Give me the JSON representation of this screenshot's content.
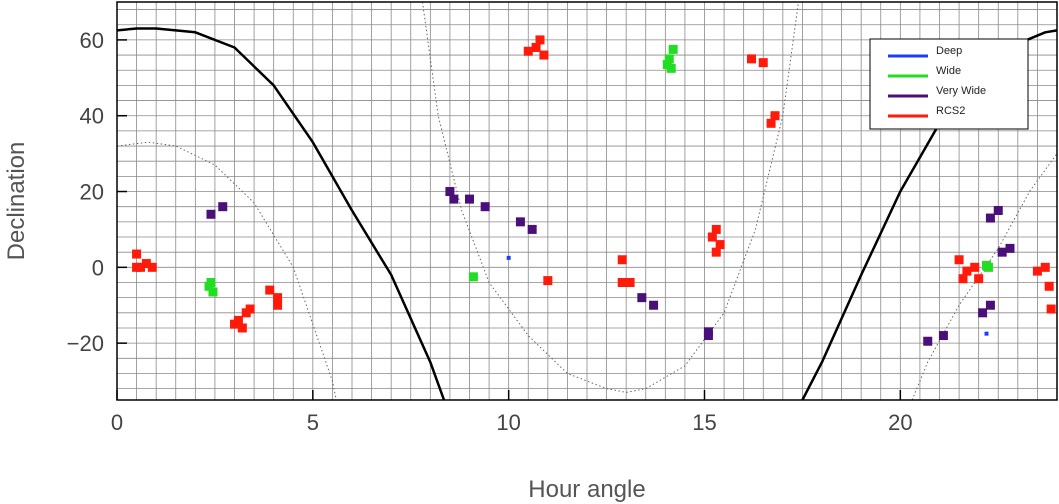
{
  "chart_data": {
    "type": "scatter",
    "xlabel": "Hour angle",
    "ylabel": "Declination",
    "xlim": [
      0,
      24
    ],
    "ylim": [
      -35,
      70
    ],
    "xticks": [
      0,
      5,
      10,
      15,
      20
    ],
    "yticks": [
      -20,
      0,
      20,
      40,
      60
    ],
    "xtick_labels": [
      "0",
      "5",
      "10",
      "15",
      "20"
    ],
    "ytick_labels": [
      "−20",
      "0",
      "20",
      "40",
      "60"
    ],
    "grid": true,
    "grid_minor_x": 0.5,
    "grid_minor_y": 4,
    "legend_position": "top-right",
    "series": [
      {
        "name": "Deep",
        "color": "#1a3cff",
        "points": [
          [
            10.0,
            2.5
          ],
          [
            14.2,
            53
          ],
          [
            22.2,
            -17.5
          ]
        ]
      },
      {
        "name": "Wide",
        "color": "#22dd22",
        "points": [
          [
            2.35,
            -5
          ],
          [
            2.45,
            -6.5
          ],
          [
            2.4,
            -4
          ],
          [
            9.1,
            -2.5
          ],
          [
            14.05,
            53.5
          ],
          [
            14.15,
            52.5
          ],
          [
            14.1,
            55
          ],
          [
            14.2,
            57.5
          ],
          [
            22.2,
            0.5
          ],
          [
            22.25,
            0
          ]
        ]
      },
      {
        "name": "Very Wide",
        "color": "#4b0f7a",
        "points": [
          [
            2.4,
            14
          ],
          [
            2.7,
            16
          ],
          [
            8.5,
            20
          ],
          [
            8.6,
            18
          ],
          [
            9.0,
            18
          ],
          [
            9.4,
            16
          ],
          [
            10.3,
            12
          ],
          [
            10.6,
            10
          ],
          [
            13.4,
            -8
          ],
          [
            13.7,
            -10
          ],
          [
            15.1,
            -17
          ],
          [
            15.1,
            -18
          ],
          [
            20.7,
            -19.5
          ],
          [
            21.1,
            -18
          ],
          [
            22.1,
            -12
          ],
          [
            22.3,
            -10
          ],
          [
            22.3,
            13
          ],
          [
            22.5,
            15
          ],
          [
            22.6,
            4
          ],
          [
            22.8,
            5
          ]
        ]
      },
      {
        "name": "RCS2",
        "color": "#ff1a0a",
        "points": [
          [
            0.5,
            3.5
          ],
          [
            0.5,
            0
          ],
          [
            0.6,
            0
          ],
          [
            0.75,
            1
          ],
          [
            0.9,
            0
          ],
          [
            3.0,
            -15
          ],
          [
            3.1,
            -14
          ],
          [
            3.2,
            -16
          ],
          [
            3.3,
            -12
          ],
          [
            3.4,
            -11
          ],
          [
            3.9,
            -6
          ],
          [
            4.1,
            -8
          ],
          [
            4.1,
            -10
          ],
          [
            10.5,
            57
          ],
          [
            10.7,
            58
          ],
          [
            10.9,
            56
          ],
          [
            10.8,
            60
          ],
          [
            11.0,
            -3.5
          ],
          [
            12.9,
            2
          ],
          [
            12.9,
            -4
          ],
          [
            13.1,
            -4
          ],
          [
            15.2,
            8
          ],
          [
            15.4,
            6
          ],
          [
            15.3,
            10
          ],
          [
            15.3,
            4
          ],
          [
            16.2,
            55
          ],
          [
            16.5,
            54
          ],
          [
            16.8,
            40
          ],
          [
            16.7,
            38
          ],
          [
            21.5,
            2
          ],
          [
            21.7,
            -1
          ],
          [
            21.9,
            0
          ],
          [
            21.6,
            -3
          ],
          [
            22.0,
            -3
          ],
          [
            23.5,
            -1
          ],
          [
            23.7,
            0
          ],
          [
            23.8,
            -5
          ],
          [
            23.85,
            -11
          ]
        ]
      }
    ],
    "curves": [
      {
        "style": "solid",
        "color": "#000000",
        "points": [
          [
            0,
            62.5
          ],
          [
            0.5,
            63
          ],
          [
            1,
            63
          ],
          [
            2,
            62
          ],
          [
            3,
            58
          ],
          [
            4,
            48
          ],
          [
            5,
            33
          ],
          [
            6,
            15
          ],
          [
            7,
            -2
          ],
          [
            8,
            -25
          ],
          [
            8.35,
            -35
          ]
        ]
      },
      {
        "style": "solid",
        "color": "#000000",
        "points": [
          [
            17.5,
            -35
          ],
          [
            18,
            -25
          ],
          [
            19,
            -2
          ],
          [
            20,
            20
          ],
          [
            21,
            38
          ],
          [
            22,
            52
          ],
          [
            23,
            59
          ],
          [
            23.7,
            62
          ],
          [
            24,
            62.5
          ]
        ]
      },
      {
        "style": "dotted",
        "color": "#666666",
        "points": [
          [
            0,
            32
          ],
          [
            0.8,
            33
          ],
          [
            1.5,
            32
          ],
          [
            2.5,
            27
          ],
          [
            3.5,
            17
          ],
          [
            4.5,
            0
          ],
          [
            5.0,
            -15
          ],
          [
            5.5,
            -30
          ],
          [
            5.6,
            -35
          ]
        ]
      },
      {
        "style": "dotted",
        "color": "#666666",
        "points": [
          [
            7.8,
            70
          ],
          [
            8.2,
            40
          ],
          [
            8.8,
            15
          ],
          [
            9.5,
            -4
          ],
          [
            10.5,
            -18
          ],
          [
            11.5,
            -28
          ],
          [
            12.5,
            -32
          ],
          [
            13.0,
            -33
          ],
          [
            13.5,
            -32
          ],
          [
            14.5,
            -26
          ],
          [
            15.5,
            -12
          ],
          [
            16.3,
            10
          ],
          [
            17.0,
            40
          ],
          [
            17.4,
            70
          ]
        ]
      },
      {
        "style": "dotted",
        "color": "#666666",
        "points": [
          [
            20.3,
            -35
          ],
          [
            20.7,
            -25
          ],
          [
            21.5,
            -10
          ],
          [
            22.5,
            5
          ],
          [
            23.3,
            20
          ],
          [
            24,
            30
          ]
        ]
      }
    ]
  }
}
